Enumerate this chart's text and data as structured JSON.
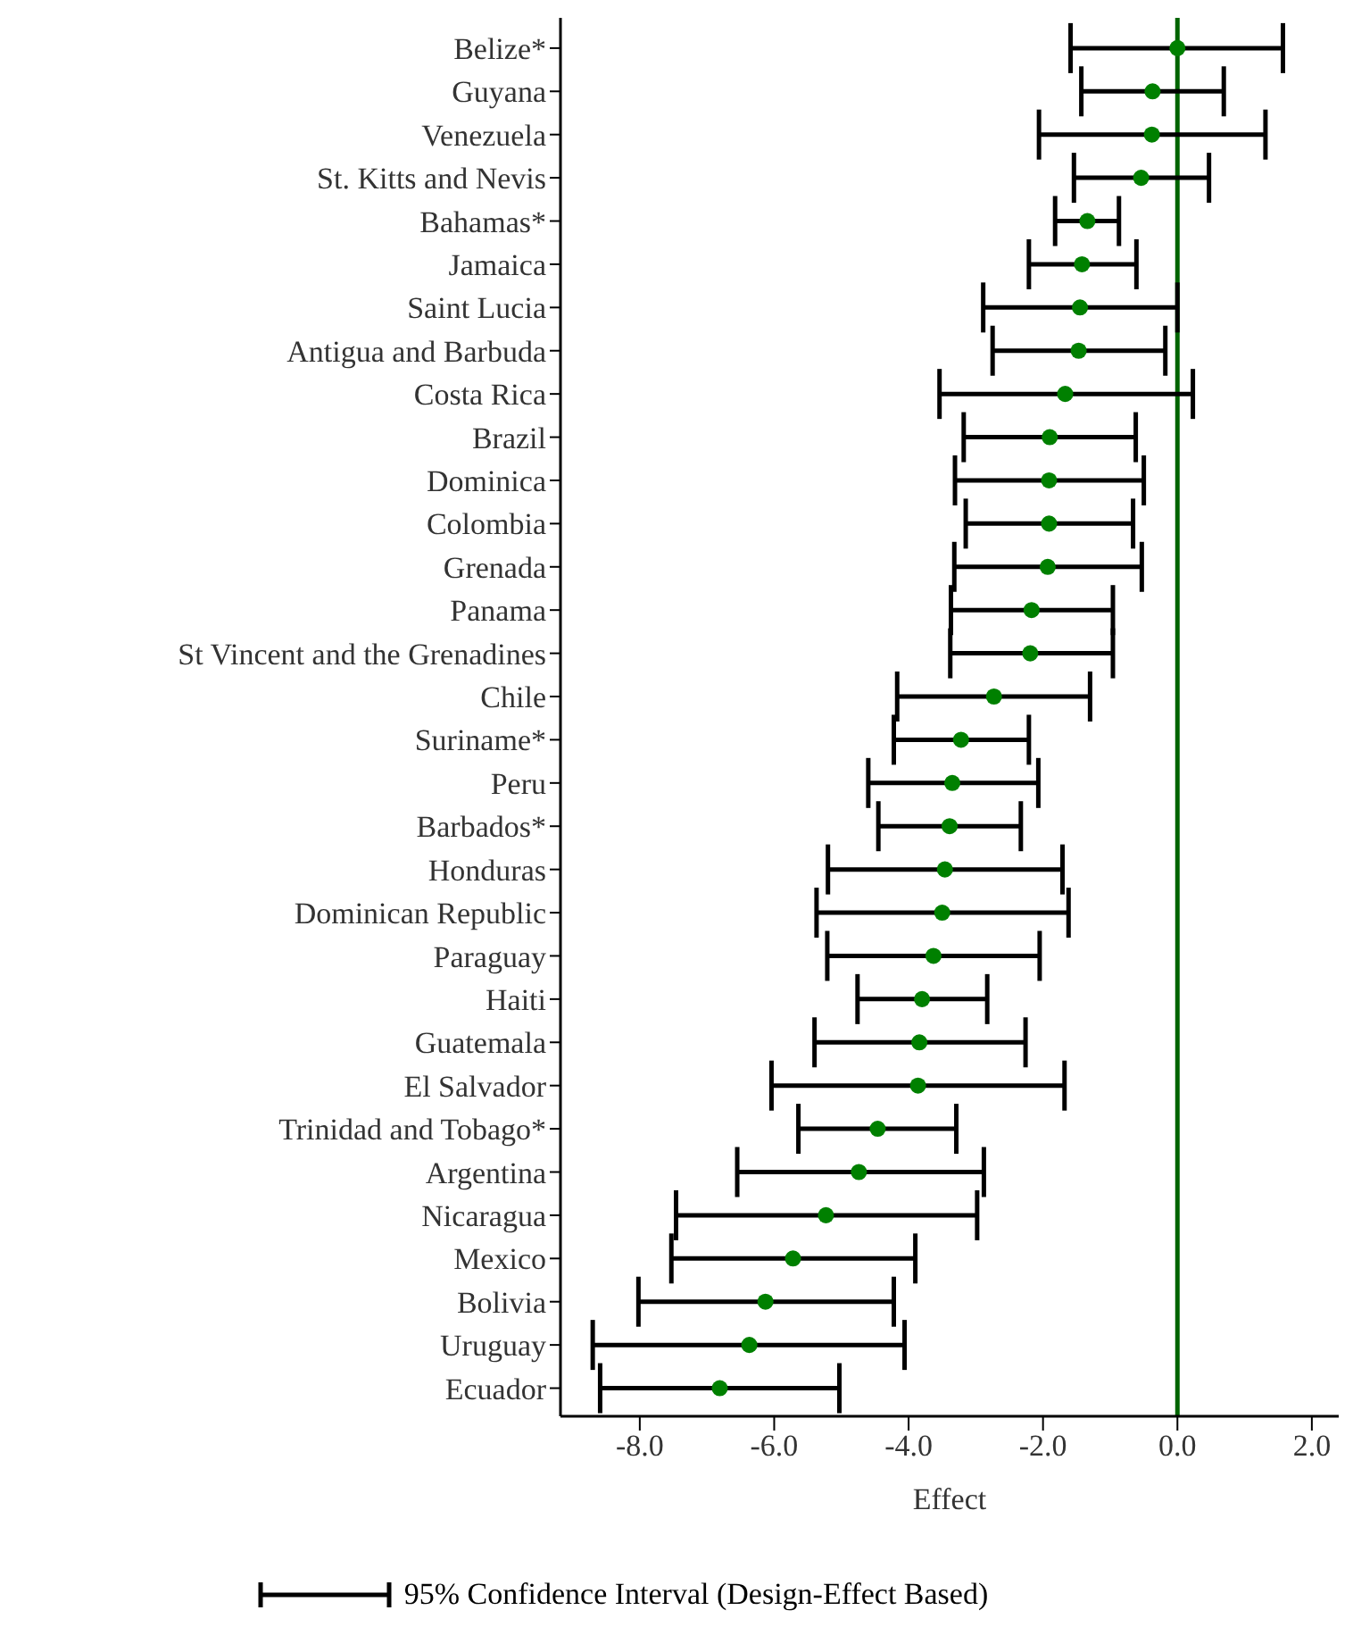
{
  "chart_data": {
    "type": "scatter",
    "xlabel": "Effect",
    "categories": [
      "Belize*",
      "Guyana",
      "Venezuela",
      "St. Kitts and Nevis",
      "Bahamas*",
      "Jamaica",
      "Saint Lucia",
      "Antigua and Barbuda",
      "Costa Rica",
      "Brazil",
      "Dominica",
      "Colombia",
      "Grenada",
      "Panama",
      "St Vincent and the Grenadines",
      "Chile",
      "Suriname*",
      "Peru",
      "Barbados*",
      "Honduras",
      "Dominican Republic",
      "Paraguay",
      "Haiti",
      "Guatemala",
      "El Salvador",
      "Trinidad and Tobago*",
      "Argentina",
      "Nicaragua",
      "Mexico",
      "Bolivia",
      "Uruguay",
      "Ecuador"
    ],
    "orientation": "horizontal",
    "series": [
      {
        "name": "95% Confidence Interval (Design-Effect Based)",
        "color": "#008000",
        "values": [
          0.0,
          -0.37,
          -0.38,
          -0.54,
          -1.34,
          -1.42,
          -1.45,
          -1.47,
          -1.67,
          -1.9,
          -1.91,
          -1.91,
          -1.93,
          -2.17,
          -2.19,
          -2.73,
          -3.22,
          -3.35,
          -3.39,
          -3.46,
          -3.5,
          -3.63,
          -3.8,
          -3.84,
          -3.86,
          -4.46,
          -4.74,
          -5.23,
          -5.72,
          -6.13,
          -6.37,
          -6.81
        ],
        "errors": [
          [
            -1.59,
            1.57
          ],
          [
            -1.43,
            0.69
          ],
          [
            -2.06,
            1.31
          ],
          [
            -1.54,
            0.47
          ],
          [
            -1.82,
            -0.87
          ],
          [
            -2.21,
            -0.61
          ],
          [
            -2.89,
            0.0
          ],
          [
            -2.75,
            -0.18
          ],
          [
            -3.54,
            0.23
          ],
          [
            -3.18,
            -0.62
          ],
          [
            -3.31,
            -0.5
          ],
          [
            -3.15,
            -0.66
          ],
          [
            -3.32,
            -0.53
          ],
          [
            -3.37,
            -0.96
          ],
          [
            -3.38,
            -0.96
          ],
          [
            -4.17,
            -1.3
          ],
          [
            -4.22,
            -2.21
          ],
          [
            -4.6,
            -2.07
          ],
          [
            -4.45,
            -2.33
          ],
          [
            -5.2,
            -1.71
          ],
          [
            -5.37,
            -1.62
          ],
          [
            -5.21,
            -2.05
          ],
          [
            -4.76,
            -2.83
          ],
          [
            -5.4,
            -2.26
          ],
          [
            -6.04,
            -1.68
          ],
          [
            -5.64,
            -3.29
          ],
          [
            -6.55,
            -2.88
          ],
          [
            -7.46,
            -2.98
          ],
          [
            -7.53,
            -3.9
          ],
          [
            -8.02,
            -4.22
          ],
          [
            -8.7,
            -4.06
          ],
          [
            -8.59,
            -5.03
          ]
        ]
      }
    ],
    "xlim": [
      -9.18,
      2.4
    ],
    "xticks": [
      {
        "value": -8,
        "label": "-8.0"
      },
      {
        "value": -6,
        "label": "-6.0"
      },
      {
        "value": -4,
        "label": "-4.0"
      },
      {
        "value": -2,
        "label": "-2.0"
      },
      {
        "value": 0,
        "label": "0.0"
      },
      {
        "value": 2,
        "label": "2.0"
      }
    ],
    "ref_lines": [
      {
        "axis": "x",
        "value": 0,
        "color": "#006400"
      }
    ],
    "marker": "circle",
    "grid": false,
    "legend": "bottom"
  }
}
